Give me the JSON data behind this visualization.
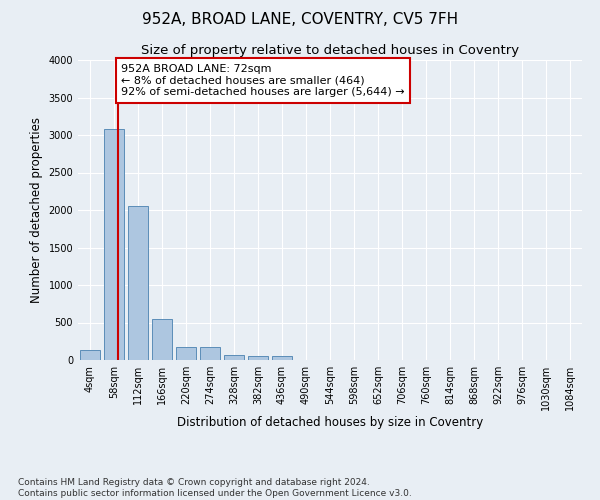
{
  "title": "952A, BROAD LANE, COVENTRY, CV5 7FH",
  "subtitle": "Size of property relative to detached houses in Coventry",
  "xlabel": "Distribution of detached houses by size in Coventry",
  "ylabel": "Number of detached properties",
  "bin_labels": [
    "4sqm",
    "58sqm",
    "112sqm",
    "166sqm",
    "220sqm",
    "274sqm",
    "328sqm",
    "382sqm",
    "436sqm",
    "490sqm",
    "544sqm",
    "598sqm",
    "652sqm",
    "706sqm",
    "760sqm",
    "814sqm",
    "868sqm",
    "922sqm",
    "976sqm",
    "1030sqm",
    "1084sqm"
  ],
  "bar_values": [
    130,
    3080,
    2060,
    550,
    175,
    175,
    65,
    55,
    50,
    0,
    0,
    0,
    0,
    0,
    0,
    0,
    0,
    0,
    0,
    0,
    0
  ],
  "bar_color": "#adc6e0",
  "bar_edge_color": "#5b8db8",
  "ylim": [
    0,
    4000
  ],
  "yticks": [
    0,
    500,
    1000,
    1500,
    2000,
    2500,
    3000,
    3500,
    4000
  ],
  "property_line_x": 1.15,
  "annotation_text": "952A BROAD LANE: 72sqm\n← 8% of detached houses are smaller (464)\n92% of semi-detached houses are larger (5,644) →",
  "annotation_box_color": "#ffffff",
  "annotation_box_edge_color": "#cc0000",
  "vline_color": "#cc0000",
  "footer_text": "Contains HM Land Registry data © Crown copyright and database right 2024.\nContains public sector information licensed under the Open Government Licence v3.0.",
  "background_color": "#e8eef4",
  "plot_background_color": "#e8eef4",
  "grid_color": "#ffffff",
  "title_fontsize": 11,
  "subtitle_fontsize": 9.5,
  "label_fontsize": 8.5,
  "tick_fontsize": 7,
  "annotation_fontsize": 8,
  "footer_fontsize": 6.5
}
